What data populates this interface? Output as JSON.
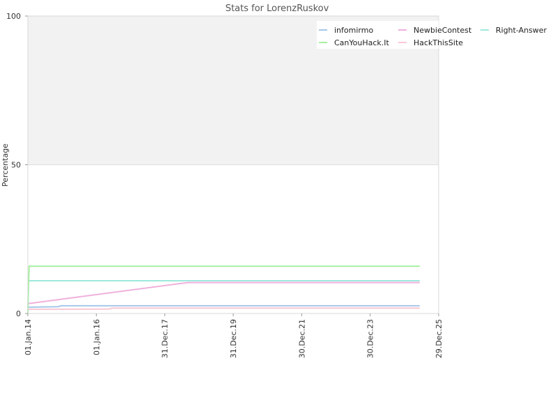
{
  "chart_data": {
    "type": "line",
    "title": "Stats for LorenzRuskov",
    "ylabel": "Percentage",
    "xlabel": "",
    "ylim": [
      0,
      100
    ],
    "yticks": [
      0,
      50,
      100
    ],
    "xlim": [
      "2014-01-01",
      "2025-12-29"
    ],
    "xticks": [
      {
        "date": "2014-01-01",
        "label": "01.Jan.14"
      },
      {
        "date": "2016-01-01",
        "label": "01.Jan.16"
      },
      {
        "date": "2017-12-31",
        "label": "31.Dec.17"
      },
      {
        "date": "2019-12-31",
        "label": "31.Dec.19"
      },
      {
        "date": "2021-12-30",
        "label": "30.Dec.21"
      },
      {
        "date": "2023-12-30",
        "label": "30.Dec.23"
      },
      {
        "date": "2025-12-29",
        "label": "29.Dec.25"
      }
    ],
    "background_bands": [
      {
        "from": 50,
        "to": 100,
        "color": "#f2f2f2"
      }
    ],
    "legend_placement": "top-right",
    "series": [
      {
        "name": "infomirmo",
        "color": "#a6c8ea",
        "points": [
          [
            "2014-01-01",
            2.1
          ],
          [
            "2014-11-20",
            2.3
          ],
          [
            "2014-12-20",
            2.6
          ],
          [
            "2025-06-10",
            2.6
          ]
        ]
      },
      {
        "name": "NewbieContest",
        "color": "#f0b0dc",
        "points": [
          [
            "2014-01-01",
            3.3
          ],
          [
            "2018-09-01",
            10.4
          ],
          [
            "2025-06-10",
            10.4
          ]
        ]
      },
      {
        "name": "Right-Answer",
        "color": "#9ee8dc",
        "points": [
          [
            "2014-01-01",
            0.0
          ],
          [
            "2014-01-10",
            11.0
          ],
          [
            "2025-06-10",
            11.0
          ]
        ]
      },
      {
        "name": "CanYouHack.It",
        "color": "#a8f0a0",
        "points": [
          [
            "2014-01-01",
            0.0
          ],
          [
            "2014-01-05",
            6.5
          ],
          [
            "2014-01-15",
            15.9
          ],
          [
            "2025-06-10",
            15.9
          ]
        ]
      },
      {
        "name": "HackThisSite",
        "color": "#f8c8d4",
        "points": [
          [
            "2014-01-01",
            1.4
          ],
          [
            "2016-05-10",
            1.5
          ],
          [
            "2016-06-15",
            1.8
          ],
          [
            "2025-06-10",
            1.8
          ]
        ]
      }
    ]
  }
}
